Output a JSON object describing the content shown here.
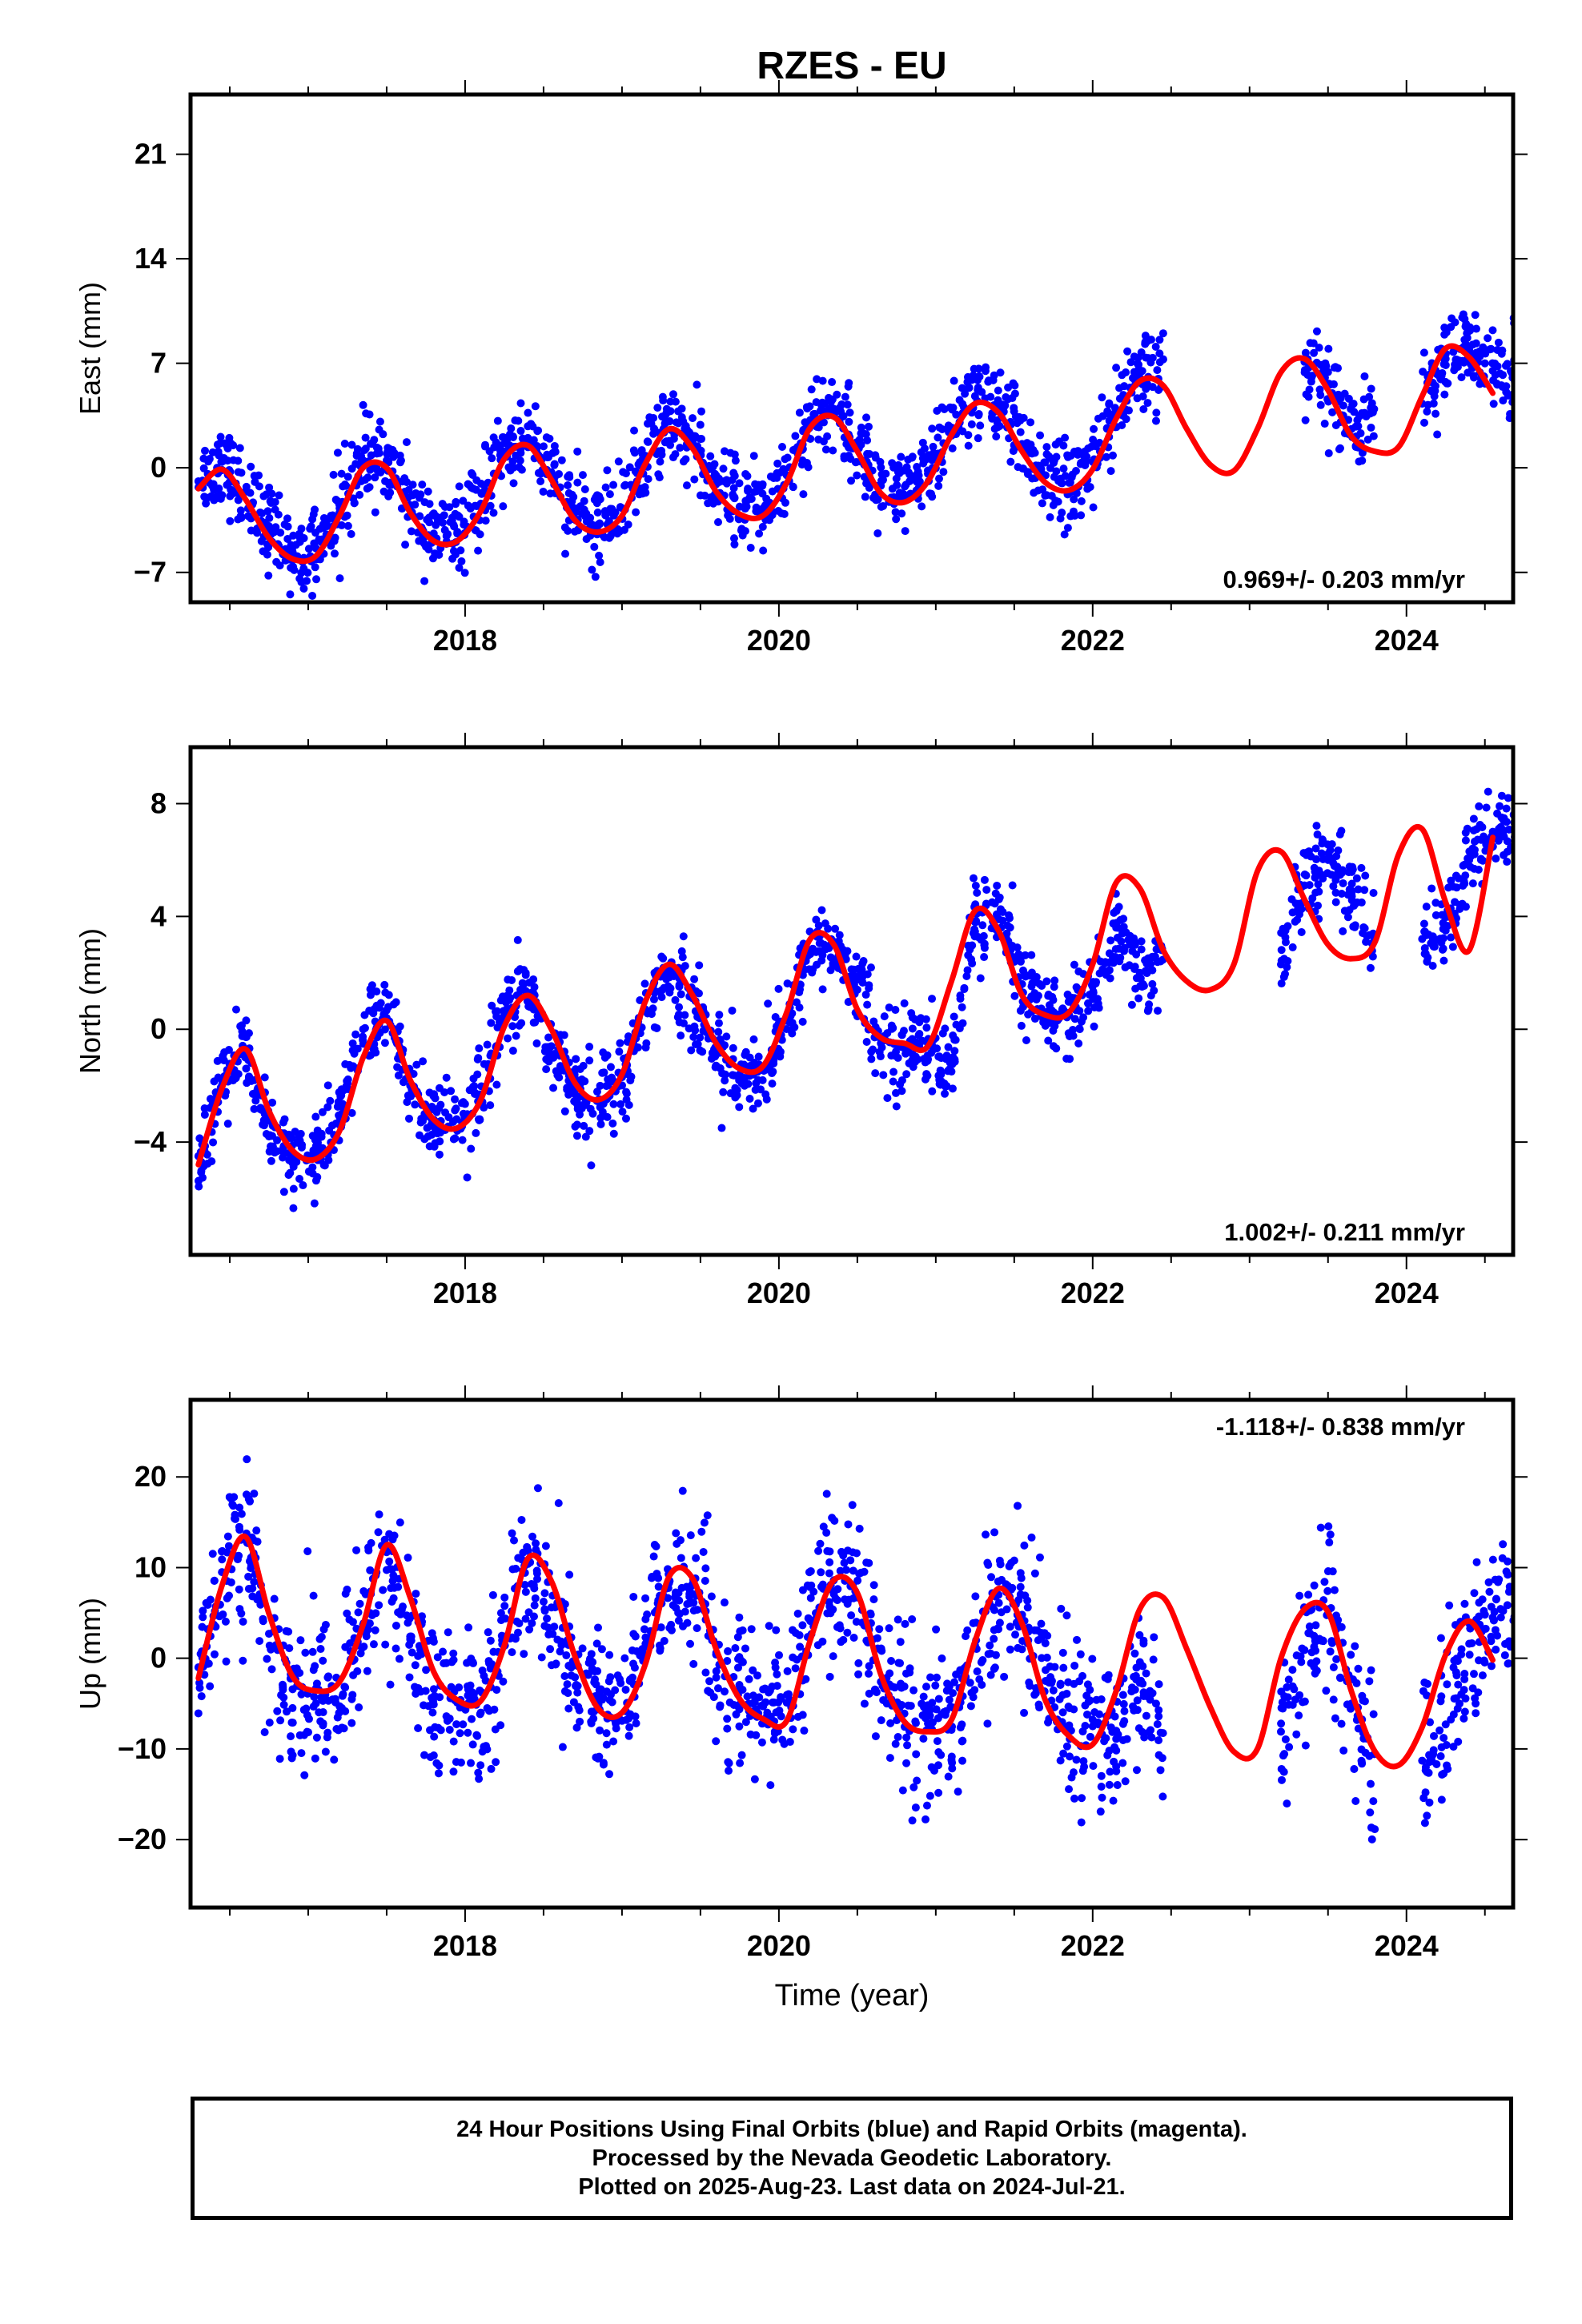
{
  "title": "RZES - EU",
  "colors": {
    "observed": "#0000ff",
    "model": "#ff0000",
    "frame": "#000000"
  },
  "chart_data": [
    {
      "type": "scatter",
      "ylabel": "East (mm)",
      "xlabel": "",
      "xlim": [
        2016.25,
        2024.68
      ],
      "ylim": [
        -9,
        25
      ],
      "xticks": [
        2018,
        2020,
        2022,
        2024
      ],
      "yticks": [
        -7,
        0,
        7,
        14,
        21
      ],
      "rate_label": "0.969+/- 0.203 mm/yr",
      "rate_position": "bottom-right",
      "series": [
        {
          "kind": "points",
          "x": [
            2016.3,
            2016.45,
            2016.6,
            2016.75,
            2016.9,
            2017.05,
            2017.2,
            2017.35,
            2017.5,
            2017.65,
            2017.8,
            2017.95,
            2018.1,
            2018.25,
            2018.4,
            2018.55,
            2018.7,
            2018.85,
            2019.0,
            2019.15,
            2019.3,
            2019.45,
            2019.6,
            2019.75,
            2019.9,
            2020.05,
            2020.2,
            2020.35,
            2020.5,
            2020.65,
            2020.8,
            2020.95,
            2021.1,
            2021.25,
            2021.4,
            2021.55,
            2021.7,
            2021.85,
            2022.0,
            2022.15,
            2022.3,
            2023.35,
            2023.5,
            2023.65,
            2024.1,
            2024.25,
            2024.4,
            2024.55
          ],
          "y": [
            -0.9,
            0.4,
            -1.6,
            -4.2,
            -5.6,
            -5.4,
            -2.7,
            0.5,
            0.5,
            -2.5,
            -4.4,
            -4.4,
            -2.4,
            1.1,
            2.0,
            -0.3,
            -3.0,
            -3.8,
            -2.7,
            0.8,
            3.1,
            1.8,
            -1.1,
            -2.6,
            -2.7,
            -0.5,
            3.2,
            3.9,
            1.6,
            -1.2,
            -1.8,
            -0.4,
            2.7,
            4.8,
            4.2,
            1.6,
            -0.5,
            -1.0,
            0.4,
            3.8,
            5.8,
            7.1,
            5.6,
            2.6,
            4.3,
            7.3,
            7.9,
            6.5
          ]
        },
        {
          "kind": "line",
          "x": [
            2016.3,
            2016.45,
            2016.6,
            2016.75,
            2016.9,
            2017.05,
            2017.2,
            2017.35,
            2017.5,
            2017.65,
            2017.8,
            2017.95,
            2018.1,
            2018.25,
            2018.4,
            2018.55,
            2018.7,
            2018.85,
            2019.0,
            2019.15,
            2019.3,
            2019.45,
            2019.6,
            2019.75,
            2019.9,
            2020.05,
            2020.2,
            2020.35,
            2020.5,
            2020.65,
            2020.8,
            2020.95,
            2021.1,
            2021.25,
            2021.4,
            2021.55,
            2021.7,
            2021.85,
            2022.0,
            2022.15,
            2022.3,
            2022.45,
            2022.6,
            2022.75,
            2022.9,
            2023.05,
            2023.2,
            2023.35,
            2023.5,
            2023.65,
            2023.8,
            2023.95,
            2024.1,
            2024.25,
            2024.4,
            2024.55
          ],
          "y": [
            -1.4,
            -0.1,
            -2.1,
            -4.7,
            -6.1,
            -5.9,
            -3.2,
            0.0,
            0.0,
            -3.0,
            -4.9,
            -4.9,
            -2.9,
            0.6,
            1.5,
            -0.8,
            -3.5,
            -4.3,
            -3.2,
            0.3,
            2.6,
            1.3,
            -1.6,
            -3.1,
            -3.2,
            -1.0,
            2.7,
            3.4,
            1.1,
            -1.7,
            -2.3,
            -0.9,
            2.2,
            4.3,
            3.7,
            1.1,
            -1.0,
            -1.5,
            -0.1,
            3.3,
            5.8,
            5.5,
            2.6,
            0.2,
            -0.2,
            2.6,
            6.4,
            7.3,
            5.2,
            2.1,
            1.1,
            1.4,
            4.8,
            8.0,
            7.4,
            5.0
          ]
        }
      ]
    },
    {
      "type": "scatter",
      "ylabel": "North (mm)",
      "xlabel": "",
      "xlim": [
        2016.25,
        2024.68
      ],
      "ylim": [
        -8,
        10
      ],
      "xticks": [
        2018,
        2020,
        2022,
        2024
      ],
      "yticks": [
        -4,
        0,
        4,
        8
      ],
      "rate_label": "1.002+/- 0.211 mm/yr",
      "rate_position": "bottom-right",
      "series": [
        {
          "kind": "points",
          "x": [
            2016.3,
            2016.45,
            2016.6,
            2016.75,
            2016.9,
            2017.05,
            2017.2,
            2017.35,
            2017.5,
            2017.65,
            2017.8,
            2017.95,
            2018.1,
            2018.25,
            2018.4,
            2018.55,
            2018.7,
            2018.85,
            2019.0,
            2019.15,
            2019.3,
            2019.45,
            2019.6,
            2019.75,
            2019.9,
            2020.05,
            2020.2,
            2020.35,
            2020.5,
            2020.65,
            2020.8,
            2020.95,
            2021.1,
            2021.25,
            2021.4,
            2021.55,
            2021.7,
            2021.85,
            2022.0,
            2022.15,
            2022.3,
            2023.2,
            2023.35,
            2023.5,
            2023.65,
            2024.1,
            2024.25,
            2024.4,
            2024.55
          ],
          "y": [
            -4.5,
            -1.8,
            -0.9,
            -3.8,
            -4.6,
            -4.5,
            -3.1,
            0.0,
            0.4,
            -2.0,
            -3.3,
            -3.6,
            -2.4,
            0.5,
            1.2,
            -0.6,
            -2.3,
            -2.5,
            -1.7,
            0.7,
            2.1,
            1.1,
            -0.9,
            -1.6,
            -1.4,
            0.3,
            2.7,
            3.1,
            1.4,
            -0.5,
            -0.6,
            -0.5,
            -1.5,
            3.8,
            3.9,
            1.6,
            0.6,
            0.5,
            1.2,
            3.6,
            2.0,
            2.3,
            5.1,
            6.0,
            4.8,
            3.2,
            3.5,
            6.0,
            7.0
          ]
        },
        {
          "kind": "line",
          "x": [
            2016.3,
            2016.45,
            2016.6,
            2016.75,
            2016.9,
            2017.05,
            2017.2,
            2017.35,
            2017.5,
            2017.65,
            2017.8,
            2017.95,
            2018.1,
            2018.25,
            2018.4,
            2018.55,
            2018.7,
            2018.85,
            2019.0,
            2019.15,
            2019.3,
            2019.45,
            2019.6,
            2019.75,
            2019.9,
            2020.05,
            2020.2,
            2020.35,
            2020.5,
            2020.65,
            2020.8,
            2020.95,
            2021.1,
            2021.25,
            2021.4,
            2021.55,
            2021.7,
            2021.85,
            2022.0,
            2022.15,
            2022.3,
            2022.45,
            2022.6,
            2022.75,
            2022.9,
            2023.05,
            2023.2,
            2023.35,
            2023.5,
            2023.65,
            2023.8,
            2023.95,
            2024.1,
            2024.25,
            2024.4,
            2024.55
          ],
          "y": [
            -4.8,
            -2.1,
            -0.7,
            -2.9,
            -4.3,
            -4.6,
            -3.6,
            -1.0,
            0.3,
            -1.8,
            -3.2,
            -3.5,
            -2.5,
            0.1,
            1.2,
            0.0,
            -1.9,
            -2.5,
            -1.6,
            1.0,
            2.3,
            1.2,
            -0.5,
            -1.4,
            -1.3,
            0.6,
            3.2,
            3.0,
            0.7,
            -0.3,
            -0.5,
            -0.6,
            1.7,
            4.2,
            3.5,
            1.2,
            0.5,
            0.6,
            2.3,
            5.2,
            5.0,
            2.8,
            1.7,
            1.4,
            2.3,
            5.6,
            6.3,
            4.6,
            3.0,
            2.5,
            3.1,
            6.2,
            7.1,
            4.5,
            2.8,
            6.8
          ]
        }
      ]
    },
    {
      "type": "scatter",
      "ylabel": "Up (mm)",
      "xlabel": "Time (year)",
      "xlim": [
        2016.25,
        2024.68
      ],
      "ylim": [
        -27.5,
        28.5
      ],
      "xticks": [
        2018,
        2020,
        2022,
        2024
      ],
      "yticks": [
        -20,
        -10,
        0,
        10,
        20
      ],
      "rate_label": "-1.118+/- 0.838 mm/yr",
      "rate_position": "top-right",
      "series": [
        {
          "kind": "points",
          "x": [
            2016.3,
            2016.45,
            2016.6,
            2016.75,
            2016.9,
            2017.05,
            2017.2,
            2017.35,
            2017.5,
            2017.65,
            2017.8,
            2017.95,
            2018.1,
            2018.25,
            2018.4,
            2018.55,
            2018.7,
            2018.85,
            2019.0,
            2019.15,
            2019.3,
            2019.45,
            2019.6,
            2019.75,
            2019.9,
            2020.05,
            2020.2,
            2020.35,
            2020.5,
            2020.65,
            2020.8,
            2020.95,
            2021.1,
            2021.25,
            2021.4,
            2021.55,
            2021.7,
            2021.85,
            2022.0,
            2022.15,
            2022.3,
            2023.2,
            2023.35,
            2023.5,
            2023.65,
            2024.1,
            2024.25,
            2024.4,
            2024.55
          ],
          "y": [
            -1.0,
            9.5,
            13.1,
            2.7,
            -5.5,
            -3.3,
            -5.3,
            3.7,
            11.7,
            2.1,
            -5.1,
            -4.9,
            -6.0,
            2.4,
            10.4,
            5.6,
            -2.1,
            -5.1,
            -6.9,
            1.6,
            8.3,
            8.2,
            0.4,
            -5.1,
            -5.3,
            -4.9,
            4.1,
            8.6,
            6.7,
            -2.6,
            -6.1,
            -7.2,
            -7.9,
            1.4,
            7.0,
            4.8,
            -1.3,
            -7.4,
            -7.5,
            -8.9,
            -2.7,
            -8.1,
            0.9,
            5.4,
            -5.0,
            -11.3,
            -7.3,
            1.6,
            4.5
          ]
        },
        {
          "kind": "line",
          "x": [
            2016.3,
            2016.45,
            2016.6,
            2016.75,
            2016.9,
            2017.05,
            2017.2,
            2017.35,
            2017.5,
            2017.65,
            2017.8,
            2017.95,
            2018.1,
            2018.25,
            2018.4,
            2018.55,
            2018.7,
            2018.85,
            2019.0,
            2019.15,
            2019.3,
            2019.45,
            2019.6,
            2019.75,
            2019.9,
            2020.05,
            2020.2,
            2020.35,
            2020.5,
            2020.65,
            2020.8,
            2020.95,
            2021.1,
            2021.25,
            2021.4,
            2021.55,
            2021.7,
            2021.85,
            2022.0,
            2022.15,
            2022.3,
            2022.45,
            2022.6,
            2022.75,
            2022.9,
            2023.05,
            2023.2,
            2023.35,
            2023.5,
            2023.65,
            2023.8,
            2023.95,
            2024.1,
            2024.25,
            2024.4,
            2024.55
          ],
          "y": [
            -2.2,
            8.0,
            13.4,
            4.9,
            -2.0,
            -3.6,
            -2.6,
            3.7,
            12.5,
            6.7,
            -1.5,
            -4.6,
            -4.7,
            1.4,
            11.0,
            8.5,
            0.2,
            -5.6,
            -6.0,
            -0.6,
            9.0,
            8.8,
            1.0,
            -4.5,
            -6.7,
            -6.9,
            2.0,
            8.6,
            7.2,
            -1.8,
            -7.0,
            -8.1,
            -6.8,
            1.9,
            7.7,
            3.8,
            -4.7,
            -8.6,
            -9.5,
            -3.6,
            5.4,
            6.7,
            1.0,
            -5.4,
            -10.3,
            -10.0,
            0.0,
            5.4,
            5.1,
            -3.7,
            -10.3,
            -11.8,
            -7.6,
            0.4,
            4.1,
            -0.2
          ]
        }
      ]
    }
  ],
  "footer": {
    "line1": "24 Hour Positions Using Final Orbits (blue) and Rapid Orbits (magenta).",
    "line2": "Processed by the Nevada Geodetic Laboratory.",
    "line3": "Plotted on 2025-Aug-23. Last data on 2024-Jul-21."
  }
}
